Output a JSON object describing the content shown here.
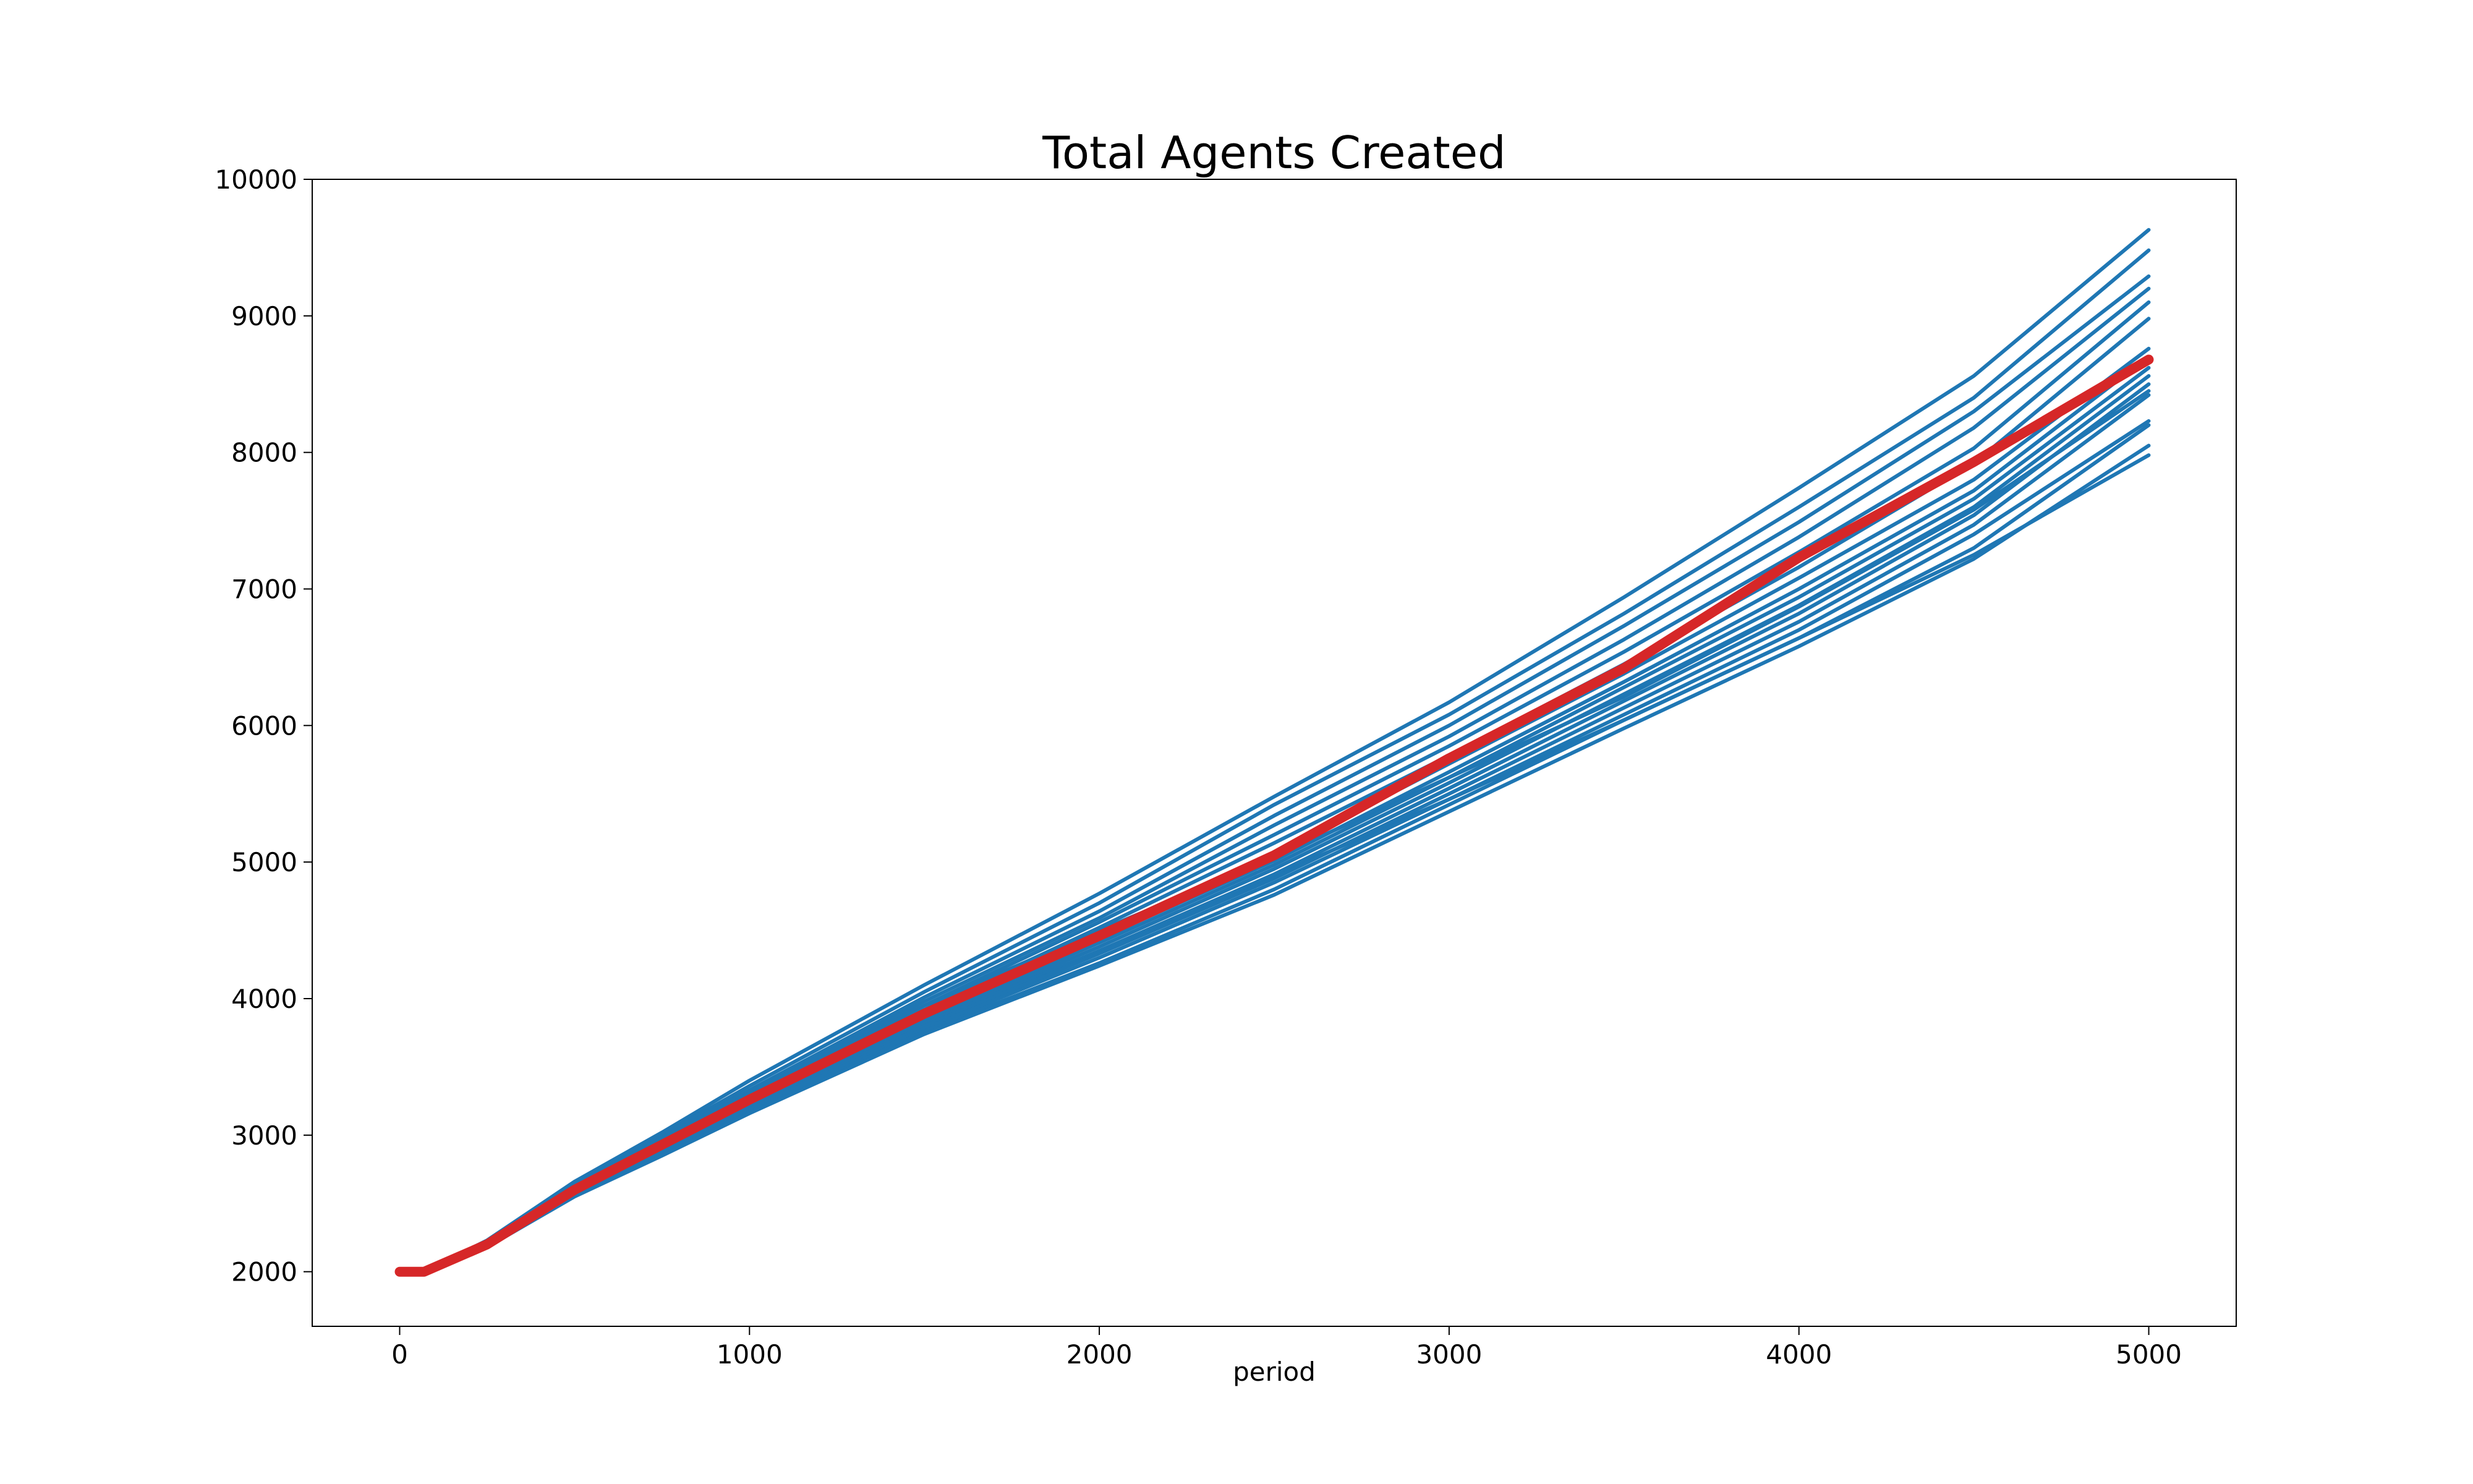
{
  "chart_data": {
    "type": "line",
    "title": "Total Agents Created",
    "xlabel": "period",
    "ylabel": "",
    "xlim": [
      -250,
      5250
    ],
    "ylim": [
      1600,
      10000
    ],
    "x_ticks": [
      0,
      1000,
      2000,
      3000,
      4000,
      5000
    ],
    "y_ticks": [
      2000,
      3000,
      4000,
      5000,
      6000,
      7000,
      8000,
      9000,
      10000
    ],
    "grid": false,
    "legend": "none",
    "x": [
      0,
      70,
      250,
      500,
      750,
      1000,
      1500,
      2000,
      2500,
      3000,
      3500,
      4000,
      4500,
      5000
    ],
    "series": [
      {
        "color": "#1f77b4",
        "values": [
          2000,
          2000,
          2220,
          2620,
          2960,
          3300,
          3950,
          4500,
          5030,
          5620,
          6210,
          6870,
          7580,
          8450
        ]
      },
      {
        "color": "#1f77b4",
        "values": [
          2000,
          2000,
          2200,
          2560,
          2870,
          3180,
          3780,
          4350,
          4900,
          5460,
          6040,
          6640,
          7250,
          7980
        ]
      },
      {
        "color": "#1f77b4",
        "values": [
          2000,
          2000,
          2230,
          2660,
          3020,
          3400,
          4100,
          4770,
          5480,
          6170,
          6940,
          7740,
          8560,
          9630
        ]
      },
      {
        "color": "#1f77b4",
        "values": [
          2000,
          2000,
          2220,
          2640,
          3000,
          3360,
          4050,
          4700,
          5420,
          6080,
          6820,
          7600,
          8400,
          9480
        ]
      },
      {
        "color": "#1f77b4",
        "values": [
          2000,
          2000,
          2210,
          2630,
          2980,
          3330,
          4010,
          4640,
          5340,
          6000,
          6730,
          7490,
          8300,
          9290
        ]
      },
      {
        "color": "#1f77b4",
        "values": [
          2000,
          2000,
          2210,
          2620,
          2960,
          3310,
          3980,
          4590,
          5270,
          5920,
          6630,
          7380,
          8180,
          9200
        ]
      },
      {
        "color": "#1f77b4",
        "values": [
          2000,
          2000,
          2210,
          2610,
          2950,
          3290,
          3950,
          4560,
          5200,
          5850,
          6540,
          7270,
          8030,
          9100
        ]
      },
      {
        "color": "#1f77b4",
        "values": [
          2000,
          2000,
          2200,
          2600,
          2930,
          3270,
          3920,
          4520,
          5140,
          5780,
          6450,
          7160,
          7920,
          8980
        ]
      },
      {
        "color": "#1f77b4",
        "values": [
          2000,
          2000,
          2200,
          2600,
          2930,
          3260,
          3900,
          4480,
          5060,
          5720,
          6380,
          7080,
          7800,
          8760
        ]
      },
      {
        "color": "#1f77b4",
        "values": [
          2000,
          2000,
          2200,
          2590,
          2920,
          3250,
          3880,
          4440,
          5010,
          5660,
          6320,
          7000,
          7720,
          8700
        ]
      },
      {
        "color": "#1f77b4",
        "values": [
          2000,
          2000,
          2200,
          2590,
          2910,
          3240,
          3860,
          4410,
          4980,
          5620,
          6280,
          6940,
          7660,
          8620
        ]
      },
      {
        "color": "#1f77b4",
        "values": [
          2000,
          2000,
          2190,
          2580,
          2900,
          3230,
          3840,
          4380,
          4950,
          5580,
          6230,
          6880,
          7600,
          8560
        ]
      },
      {
        "color": "#1f77b4",
        "values": [
          2000,
          2000,
          2190,
          2580,
          2890,
          3210,
          3820,
          4350,
          4910,
          5540,
          6180,
          6820,
          7540,
          8500
        ]
      },
      {
        "color": "#1f77b4",
        "values": [
          2000,
          2000,
          2190,
          2570,
          2880,
          3200,
          3800,
          4330,
          4880,
          5500,
          6130,
          6760,
          7470,
          8420
        ]
      },
      {
        "color": "#1f77b4",
        "values": [
          2000,
          2000,
          2190,
          2570,
          2870,
          3190,
          3780,
          4300,
          4850,
          5460,
          6080,
          6700,
          7400,
          8230
        ]
      },
      {
        "color": "#1f77b4",
        "values": [
          2000,
          2000,
          2180,
          2560,
          2860,
          3170,
          3760,
          4260,
          4800,
          5420,
          6040,
          6640,
          7300,
          8200
        ]
      },
      {
        "color": "#1f77b4",
        "values": [
          2000,
          2000,
          2180,
          2550,
          2850,
          3160,
          3740,
          4240,
          4760,
          5370,
          5980,
          6580,
          7220,
          8050
        ]
      },
      {
        "color": "#d62728",
        "values": [
          2000,
          2000,
          2200,
          2600,
          2930,
          3260,
          3890,
          4460,
          5050,
          5760,
          6420,
          7230,
          7930,
          8680
        ]
      }
    ]
  }
}
